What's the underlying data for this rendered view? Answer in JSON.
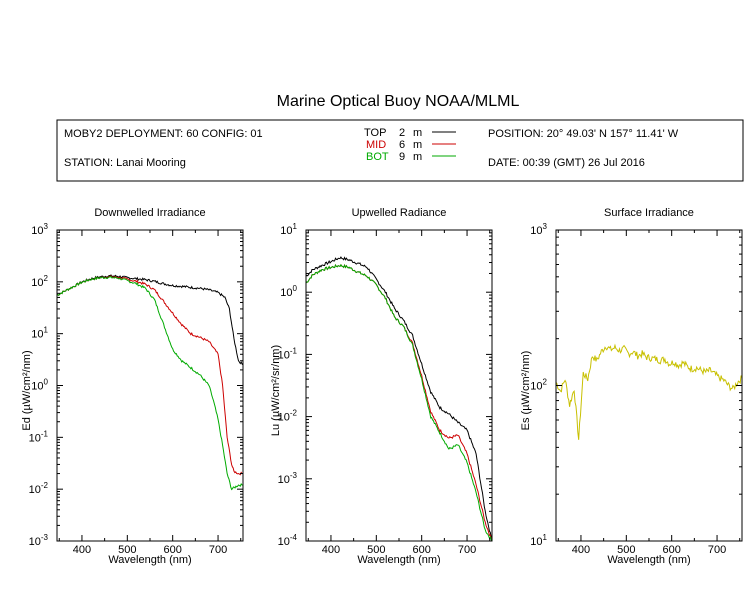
{
  "title": "Marine Optical Buoy NOAA/MLML",
  "info": {
    "deployment": "MOBY2 DEPLOYMENT: 60 CONFIG: 01",
    "station": "STATION: Lanai Mooring",
    "position": "POSITION: 20° 49.03' N   157° 11.41' W",
    "date": "DATE: 00:39 (GMT) 26 Jul 2016"
  },
  "legend": [
    {
      "label": "TOP",
      "depth": "2",
      "unit": "m",
      "color": "#000000"
    },
    {
      "label": "MID",
      "depth": "6",
      "unit": "m",
      "color": "#cc0000"
    },
    {
      "label": "BOT",
      "depth": "9",
      "unit": "m",
      "color": "#00aa00"
    }
  ],
  "chart_data": [
    {
      "type": "line",
      "title": "Downwelled Irradiance",
      "xlabel": "Wavelength (nm)",
      "ylabel": "Ed  (µW/cm²/nm)",
      "yscale": "log",
      "xlim": [
        345,
        755
      ],
      "ylim": [
        0.001,
        1000
      ],
      "xticks": [
        400,
        500,
        600,
        700
      ],
      "yticks": [
        {
          "value": 0.001,
          "base": "10",
          "exp": "-3"
        },
        {
          "value": 0.01,
          "base": "10",
          "exp": "-2"
        },
        {
          "value": 0.1,
          "base": "10",
          "exp": "-1"
        },
        {
          "value": 1,
          "base": "10",
          "exp": "0"
        },
        {
          "value": 10,
          "base": "10",
          "exp": "1"
        },
        {
          "value": 100,
          "base": "10",
          "exp": "2"
        },
        {
          "value": 1000,
          "base": "10",
          "exp": "3"
        }
      ],
      "series": [
        {
          "name": "TOP",
          "color": "#000000",
          "x": [
            345,
            360,
            380,
            400,
            420,
            440,
            460,
            480,
            500,
            520,
            540,
            560,
            580,
            600,
            620,
            640,
            660,
            680,
            700,
            715,
            725,
            735,
            745,
            755
          ],
          "y": [
            55,
            65,
            80,
            100,
            115,
            125,
            130,
            128,
            120,
            115,
            110,
            102,
            92,
            85,
            82,
            78,
            75,
            70,
            62,
            50,
            30,
            8,
            3,
            2.5
          ]
        },
        {
          "name": "MID",
          "color": "#cc0000",
          "x": [
            345,
            360,
            380,
            400,
            420,
            440,
            460,
            480,
            500,
            520,
            540,
            560,
            580,
            600,
            620,
            640,
            660,
            680,
            700,
            710,
            720,
            730,
            735,
            745,
            755
          ],
          "y": [
            55,
            65,
            80,
            98,
            112,
            120,
            125,
            122,
            112,
            102,
            90,
            70,
            42,
            25,
            15,
            10,
            8.5,
            7,
            4,
            1,
            0.1,
            0.03,
            0.022,
            0.02,
            0.02
          ]
        },
        {
          "name": "BOT",
          "color": "#00aa00",
          "x": [
            345,
            360,
            380,
            400,
            420,
            440,
            460,
            480,
            500,
            520,
            540,
            560,
            580,
            600,
            620,
            640,
            660,
            680,
            690,
            700,
            710,
            720,
            730,
            745,
            755
          ],
          "y": [
            55,
            65,
            80,
            98,
            112,
            120,
            122,
            118,
            105,
            92,
            75,
            45,
            15,
            5,
            3,
            2.2,
            1.6,
            1,
            0.5,
            0.22,
            0.07,
            0.02,
            0.01,
            0.012,
            0.012
          ]
        }
      ]
    },
    {
      "type": "line",
      "title": "Upwelled Radiance",
      "xlabel": "Wavelength (nm)",
      "ylabel": "Lu  (µW/cm²/sr/nm)",
      "yscale": "log",
      "xlim": [
        345,
        755
      ],
      "ylim": [
        0.0001,
        10
      ],
      "xticks": [
        400,
        500,
        600,
        700
      ],
      "yticks": [
        {
          "value": 0.0001,
          "base": "10",
          "exp": "-4"
        },
        {
          "value": 0.001,
          "base": "10",
          "exp": "-3"
        },
        {
          "value": 0.01,
          "base": "10",
          "exp": "-2"
        },
        {
          "value": 0.1,
          "base": "10",
          "exp": "-1"
        },
        {
          "value": 1,
          "base": "10",
          "exp": "0"
        },
        {
          "value": 10,
          "base": "10",
          "exp": "1"
        }
      ],
      "series": [
        {
          "name": "TOP",
          "color": "#000000",
          "x": [
            345,
            360,
            380,
            400,
            420,
            440,
            460,
            480,
            500,
            520,
            540,
            560,
            580,
            600,
            620,
            640,
            660,
            680,
            700,
            720,
            740,
            755
          ],
          "y": [
            1.8,
            2.3,
            2.7,
            3.1,
            3.6,
            3.3,
            2.9,
            2.5,
            1.6,
            1.0,
            0.55,
            0.35,
            0.2,
            0.07,
            0.025,
            0.014,
            0.011,
            0.008,
            0.006,
            0.0025,
            0.0003,
            0.0001
          ]
        },
        {
          "name": "MID",
          "color": "#cc0000",
          "x": [
            345,
            360,
            380,
            400,
            420,
            440,
            460,
            480,
            500,
            520,
            540,
            560,
            580,
            600,
            620,
            640,
            660,
            680,
            700,
            720,
            740,
            755
          ],
          "y": [
            1.4,
            1.9,
            2.3,
            2.5,
            2.7,
            2.5,
            2.1,
            1.8,
            1.3,
            0.8,
            0.4,
            0.28,
            0.15,
            0.045,
            0.012,
            0.006,
            0.0045,
            0.005,
            0.0025,
            0.0008,
            0.0002,
            0.0001
          ]
        },
        {
          "name": "BOT",
          "color": "#00aa00",
          "x": [
            345,
            360,
            380,
            400,
            420,
            440,
            460,
            480,
            500,
            520,
            540,
            560,
            580,
            600,
            620,
            640,
            660,
            680,
            700,
            720,
            740,
            755
          ],
          "y": [
            1.4,
            1.9,
            2.3,
            2.5,
            2.7,
            2.5,
            2.1,
            1.8,
            1.3,
            0.8,
            0.4,
            0.28,
            0.14,
            0.04,
            0.01,
            0.0055,
            0.003,
            0.0035,
            0.0018,
            0.0006,
            0.00015,
            0.0001
          ]
        }
      ]
    },
    {
      "type": "line",
      "title": "Surface Irradiance",
      "xlabel": "Wavelength (nm)",
      "ylabel": "Es  (µW/cm²/nm)",
      "yscale": "log",
      "xlim": [
        345,
        755
      ],
      "ylim": [
        10,
        1000
      ],
      "xticks": [
        400,
        500,
        600,
        700
      ],
      "yticks": [
        {
          "value": 10,
          "base": "10",
          "exp": "1"
        },
        {
          "value": 100,
          "base": "10",
          "exp": "2"
        },
        {
          "value": 1000,
          "base": "10",
          "exp": "3"
        }
      ],
      "series": [
        {
          "name": "Es",
          "color": "#c8c000",
          "x": [
            345,
            355,
            365,
            375,
            385,
            395,
            405,
            415,
            425,
            435,
            445,
            455,
            465,
            475,
            485,
            495,
            505,
            515,
            525,
            535,
            545,
            555,
            565,
            575,
            585,
            595,
            605,
            615,
            625,
            635,
            645,
            655,
            665,
            675,
            685,
            695,
            705,
            715,
            725,
            735,
            745,
            755
          ],
          "y": [
            105,
            92,
            110,
            75,
            95,
            45,
            120,
            110,
            155,
            145,
            165,
            180,
            170,
            175,
            168,
            172,
            160,
            165,
            155,
            160,
            152,
            150,
            148,
            145,
            148,
            138,
            142,
            135,
            140,
            132,
            128,
            130,
            125,
            122,
            125,
            118,
            112,
            108,
            100,
            95,
            105,
            112
          ]
        }
      ]
    }
  ]
}
